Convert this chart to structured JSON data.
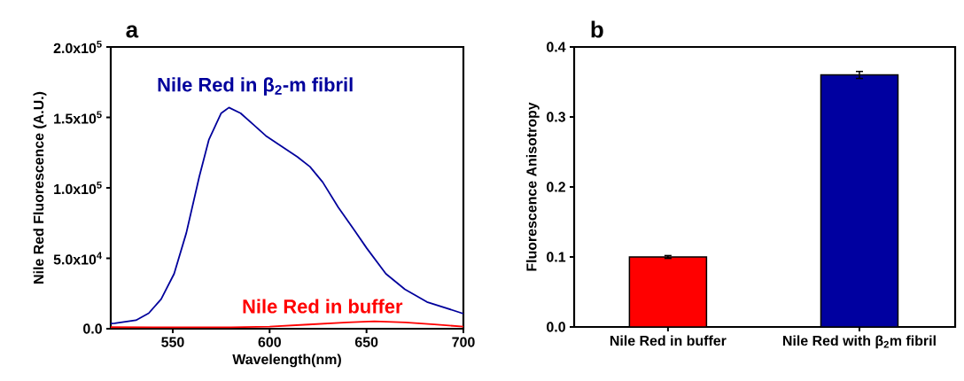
{
  "chart_data": [
    {
      "type": "line",
      "title": "a",
      "xlabel": "Wavelength(nm)",
      "ylabel": "Nile Red Fluorescence (A.U.)",
      "xlim": [
        518,
        700
      ],
      "ylim": [
        0,
        200000
      ],
      "xticks": [
        550,
        600,
        650,
        700
      ],
      "yticks": [
        {
          "value": 0,
          "label": "0.0"
        },
        {
          "value": 50000,
          "label": "5.0x10$^{4}$"
        },
        {
          "value": 100000,
          "label": "1.0x10$^{5}$"
        },
        {
          "value": 150000,
          "label": "1.5x10$^{5}$"
        },
        {
          "value": 200000,
          "label": "2.0x10$^{5}$"
        }
      ],
      "series": [
        {
          "name": "Nile Red in β$_{2}$-m fibril",
          "color": "#00009c",
          "x": [
            518,
            520,
            531,
            537.6,
            544,
            550.7,
            557,
            563.7,
            568.6,
            575,
            579,
            585,
            591.5,
            598,
            604.5,
            614.3,
            620.8,
            627.4,
            635.5,
            643.7,
            650.2,
            660,
            669.8,
            681.2,
            700
          ],
          "values": [
            3700,
            3800,
            6000,
            11000,
            21000,
            39000,
            68000,
            108000,
            134000,
            153000,
            157000,
            153000,
            145000,
            137000,
            131000,
            122000,
            115000,
            104000,
            86000,
            70000,
            57000,
            39000,
            28000,
            19000,
            10700
          ]
        },
        {
          "name": "Nile Red in buffer",
          "color": "#ff0000",
          "x": [
            518,
            540,
            560,
            580,
            600,
            620,
            640,
            654,
            670,
            685,
            700
          ],
          "values": [
            1100,
            1000,
            1000,
            1000,
            1500,
            3000,
            4500,
            5300,
            4500,
            3000,
            1500
          ]
        }
      ]
    },
    {
      "type": "bar",
      "title": "b",
      "ylabel": "Fluorescence Anisotropy",
      "categories": [
        "Nile Red in buffer",
        "Nile Red with β$_{2}$m fibril"
      ],
      "values": [
        0.1,
        0.36
      ],
      "errors": [
        0.002,
        0.005
      ],
      "colors": [
        "#ff0000",
        "#0000a0"
      ],
      "ylim": [
        0,
        0.4
      ],
      "yticks": [
        {
          "value": 0,
          "label": "0.0"
        },
        0.1,
        0.2,
        0.3,
        0.4
      ]
    }
  ]
}
